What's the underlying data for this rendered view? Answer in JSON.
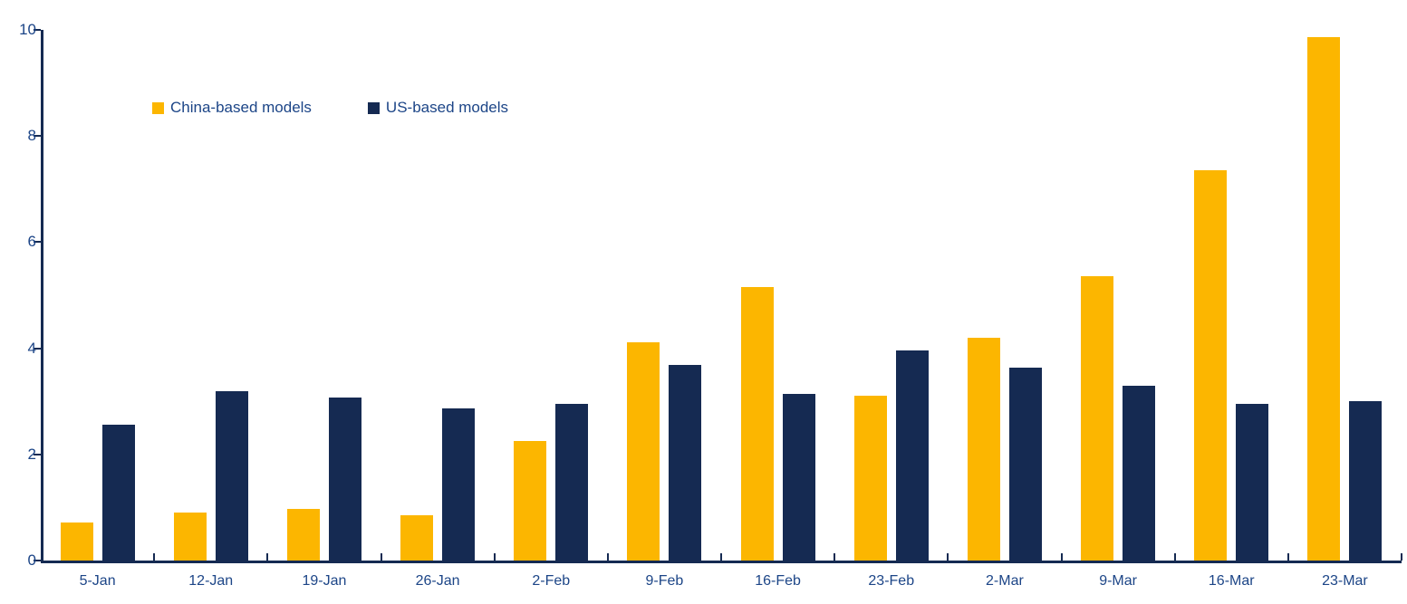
{
  "page": {
    "background_color": "#FFFFFF"
  },
  "legend": {
    "position": "top-left-inside",
    "items": [
      {
        "label": "China-based models",
        "color": "#FCB600"
      },
      {
        "label": "US-based models",
        "color": "#152A52"
      }
    ]
  },
  "chart_data": {
    "type": "bar",
    "title": "",
    "xlabel": "",
    "ylabel": "",
    "categories": [
      "5-Jan",
      "12-Jan",
      "19-Jan",
      "26-Jan",
      "2-Feb",
      "9-Feb",
      "16-Feb",
      "23-Feb",
      "2-Mar",
      "9-Mar",
      "16-Mar",
      "23-Mar"
    ],
    "series": [
      {
        "name": "China-based models",
        "color": "#FCB600",
        "values": [
          0.72,
          0.9,
          0.97,
          0.85,
          2.25,
          4.11,
          5.15,
          3.11,
          4.2,
          5.36,
          7.36,
          9.87
        ]
      },
      {
        "name": "US-based models",
        "color": "#152A52",
        "values": [
          2.56,
          3.19,
          3.07,
          2.87,
          2.95,
          3.69,
          3.14,
          3.96,
          3.64,
          3.29,
          2.95,
          3.0
        ]
      }
    ],
    "ylim": [
      0,
      10
    ],
    "yticks": [
      0,
      2,
      4,
      6,
      8,
      10
    ],
    "grid": false,
    "legend_position": "top-left-inside",
    "axis_color": "#152A52",
    "tick_label_color": "#1C4587",
    "tick_style": {
      "x": "inside",
      "y": "outside"
    }
  }
}
